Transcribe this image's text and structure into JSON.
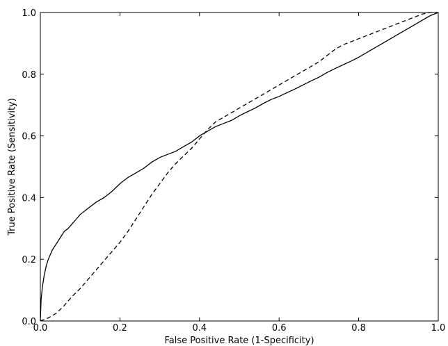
{
  "chart_data": {
    "type": "line",
    "title": "",
    "xlabel": "False Positive Rate (1-Specificity)",
    "ylabel": "True Positive Rate (Sensitivity)",
    "xlim": [
      0.0,
      1.0
    ],
    "ylim": [
      0.0,
      1.0
    ],
    "xticks": [
      0.0,
      0.2,
      0.4,
      0.6,
      0.8,
      1.0
    ],
    "yticks": [
      0.0,
      0.2,
      0.4,
      0.6,
      0.8,
      1.0
    ],
    "xtick_labels": [
      "0.0",
      "0.2",
      "0.4",
      "0.6",
      "0.8",
      "1.0"
    ],
    "ytick_labels": [
      "0.0",
      "0.2",
      "0.4",
      "0.6",
      "0.8",
      "1.0"
    ],
    "grid": false,
    "legend": "none",
    "series": [
      {
        "style": "solid",
        "color": "#000000",
        "x": [
          0.0,
          0.002,
          0.005,
          0.01,
          0.015,
          0.02,
          0.03,
          0.04,
          0.05,
          0.06,
          0.07,
          0.08,
          0.09,
          0.1,
          0.12,
          0.14,
          0.16,
          0.18,
          0.2,
          0.22,
          0.24,
          0.26,
          0.28,
          0.3,
          0.32,
          0.34,
          0.36,
          0.38,
          0.4,
          0.42,
          0.44,
          0.46,
          0.48,
          0.5,
          0.52,
          0.54,
          0.56,
          0.58,
          0.6,
          0.62,
          0.64,
          0.66,
          0.68,
          0.7,
          0.72,
          0.74,
          0.76,
          0.78,
          0.8,
          0.82,
          0.84,
          0.86,
          0.88,
          0.9,
          0.92,
          0.94,
          0.96,
          0.98,
          1.0
        ],
        "y": [
          0.0,
          0.07,
          0.11,
          0.15,
          0.18,
          0.2,
          0.23,
          0.25,
          0.27,
          0.29,
          0.3,
          0.315,
          0.33,
          0.345,
          0.365,
          0.385,
          0.4,
          0.42,
          0.445,
          0.465,
          0.48,
          0.495,
          0.515,
          0.53,
          0.54,
          0.55,
          0.565,
          0.58,
          0.6,
          0.615,
          0.63,
          0.64,
          0.65,
          0.665,
          0.678,
          0.69,
          0.705,
          0.718,
          0.728,
          0.74,
          0.752,
          0.765,
          0.778,
          0.79,
          0.805,
          0.818,
          0.83,
          0.842,
          0.855,
          0.87,
          0.885,
          0.9,
          0.915,
          0.93,
          0.945,
          0.96,
          0.975,
          0.99,
          1.0
        ]
      },
      {
        "style": "dashed",
        "color": "#000000",
        "x": [
          0.0,
          0.02,
          0.04,
          0.06,
          0.08,
          0.1,
          0.12,
          0.14,
          0.16,
          0.18,
          0.2,
          0.22,
          0.24,
          0.26,
          0.28,
          0.3,
          0.32,
          0.34,
          0.36,
          0.38,
          0.4,
          0.42,
          0.44,
          0.46,
          0.48,
          0.5,
          0.52,
          0.54,
          0.56,
          0.58,
          0.6,
          0.62,
          0.64,
          0.66,
          0.68,
          0.7,
          0.72,
          0.74,
          0.76,
          0.78,
          0.8,
          0.82,
          0.84,
          0.86,
          0.88,
          0.9,
          0.92,
          0.94,
          0.96,
          0.98,
          1.0
        ],
        "y": [
          0.0,
          0.01,
          0.025,
          0.05,
          0.08,
          0.105,
          0.135,
          0.165,
          0.195,
          0.225,
          0.255,
          0.29,
          0.33,
          0.37,
          0.41,
          0.445,
          0.48,
          0.51,
          0.535,
          0.56,
          0.59,
          0.62,
          0.645,
          0.66,
          0.675,
          0.69,
          0.705,
          0.72,
          0.735,
          0.75,
          0.765,
          0.78,
          0.795,
          0.81,
          0.825,
          0.84,
          0.86,
          0.88,
          0.895,
          0.905,
          0.915,
          0.925,
          0.935,
          0.945,
          0.955,
          0.965,
          0.975,
          0.985,
          0.995,
          1.0,
          1.0
        ]
      }
    ]
  }
}
